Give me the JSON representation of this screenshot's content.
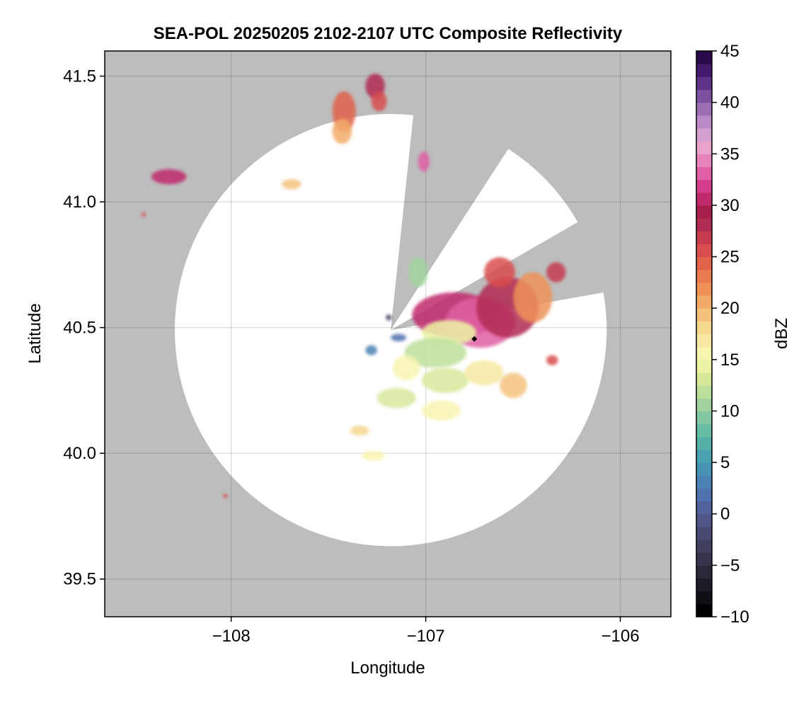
{
  "chart_data": {
    "type": "heatmap",
    "title": "SEA-POL 20250205 2102-2107 UTC Composite Reflectivity",
    "xlabel": "Longitude",
    "ylabel": "Latitude",
    "xlim": [
      -108.65,
      -105.74
    ],
    "ylim": [
      39.35,
      41.6
    ],
    "xticks": [
      {
        "value": -108,
        "label": "−108"
      },
      {
        "value": -107,
        "label": "−107"
      },
      {
        "value": -106,
        "label": "−106"
      }
    ],
    "yticks": [
      {
        "value": 39.5,
        "label": "39.5"
      },
      {
        "value": 40.0,
        "label": "40.0"
      },
      {
        "value": 40.5,
        "label": "40.5"
      },
      {
        "value": 41.0,
        "label": "41.0"
      },
      {
        "value": 41.5,
        "label": "41.5"
      }
    ],
    "grid": true,
    "background_color": "#bdbdbd",
    "coverage_color": "#ffffff",
    "radar": {
      "center_lon": -107.18,
      "center_lat": 40.49,
      "range_deg": 1.11,
      "blocked_sectors_deg": [
        [
          10,
          30
        ],
        [
          57,
          84
        ]
      ],
      "site_marker": {
        "lon": -106.75,
        "lat": 40.455
      }
    },
    "colorbar": {
      "label": "dBZ",
      "min": -10,
      "max": 45,
      "ticks": [
        {
          "value": 45,
          "label": "45"
        },
        {
          "value": 40,
          "label": "40"
        },
        {
          "value": 35,
          "label": "35"
        },
        {
          "value": 30,
          "label": "30"
        },
        {
          "value": 25,
          "label": "25"
        },
        {
          "value": 20,
          "label": "20"
        },
        {
          "value": 15,
          "label": "15"
        },
        {
          "value": 10,
          "label": "10"
        },
        {
          "value": 5,
          "label": "5"
        },
        {
          "value": 0,
          "label": "0"
        },
        {
          "value": -5,
          "label": "−5"
        },
        {
          "value": -10,
          "label": "−10"
        }
      ],
      "colors": [
        "#000000",
        "#0f0e14",
        "#1d1b26",
        "#2a2838",
        "#36344c",
        "#403f5f",
        "#494a73",
        "#4f5687",
        "#52629a",
        "#4f71ad",
        "#4a82b4",
        "#4592b5",
        "#4aa2b0",
        "#55b1a8",
        "#67bda4",
        "#83c8a3",
        "#a2d39f",
        "#bddf9c",
        "#d6e99b",
        "#ecf4a3",
        "#f8f5b0",
        "#f7e9a2",
        "#f6d88f",
        "#f4c27c",
        "#f2aa68",
        "#ef9258",
        "#ea7a4f",
        "#e2624b",
        "#d84d4d",
        "#c63c4f",
        "#b02c52",
        "#a71f4c",
        "#c02a6c",
        "#d33d8a",
        "#e05fa5",
        "#e884bc",
        "#e9a4cc",
        "#d3a0d0",
        "#b98ac5",
        "#9c6fb3",
        "#7d519f",
        "#5e3388",
        "#42196c",
        "#2a0a4d"
      ]
    },
    "echoes": [
      {
        "lon": -106.85,
        "lat": 40.55,
        "rlon": 0.22,
        "rlat": 0.09,
        "dbz": 30
      },
      {
        "lon": -106.72,
        "lat": 40.52,
        "rlon": 0.18,
        "rlat": 0.1,
        "dbz": 33
      },
      {
        "lon": -106.58,
        "lat": 40.58,
        "rlon": 0.16,
        "rlat": 0.12,
        "dbz": 28
      },
      {
        "lon": -106.45,
        "lat": 40.62,
        "rlon": 0.1,
        "rlat": 0.1,
        "dbz": 22
      },
      {
        "lon": -106.62,
        "lat": 40.72,
        "rlon": 0.08,
        "rlat": 0.06,
        "dbz": 25
      },
      {
        "lon": -106.33,
        "lat": 40.72,
        "rlon": 0.05,
        "rlat": 0.04,
        "dbz": 27
      },
      {
        "lon": -106.88,
        "lat": 40.48,
        "rlon": 0.14,
        "rlat": 0.05,
        "dbz": 14
      },
      {
        "lon": -106.95,
        "lat": 40.4,
        "rlon": 0.16,
        "rlat": 0.06,
        "dbz": 12
      },
      {
        "lon": -106.9,
        "lat": 40.29,
        "rlon": 0.12,
        "rlat": 0.05,
        "dbz": 13
      },
      {
        "lon": -107.1,
        "lat": 40.34,
        "rlon": 0.07,
        "rlat": 0.05,
        "dbz": 15
      },
      {
        "lon": -107.15,
        "lat": 40.22,
        "rlon": 0.1,
        "rlat": 0.04,
        "dbz": 13
      },
      {
        "lon": -106.92,
        "lat": 40.17,
        "rlon": 0.1,
        "rlat": 0.04,
        "dbz": 16
      },
      {
        "lon": -106.7,
        "lat": 40.32,
        "rlon": 0.1,
        "rlat": 0.05,
        "dbz": 17
      },
      {
        "lon": -106.55,
        "lat": 40.27,
        "rlon": 0.07,
        "rlat": 0.05,
        "dbz": 19
      },
      {
        "lon": -107.27,
        "lat": 39.99,
        "rlon": 0.06,
        "rlat": 0.02,
        "dbz": 16
      },
      {
        "lon": -107.34,
        "lat": 40.09,
        "rlon": 0.05,
        "rlat": 0.02,
        "dbz": 18
      },
      {
        "lon": -107.04,
        "lat": 40.72,
        "rlon": 0.05,
        "rlat": 0.06,
        "dbz": 11
      },
      {
        "lon": -106.35,
        "lat": 40.37,
        "rlon": 0.03,
        "rlat": 0.02,
        "dbz": 25
      },
      {
        "lon": -107.42,
        "lat": 41.36,
        "rlon": 0.06,
        "rlat": 0.08,
        "dbz": 24
      },
      {
        "lon": -107.43,
        "lat": 41.28,
        "rlon": 0.05,
        "rlat": 0.05,
        "dbz": 20
      },
      {
        "lon": -107.26,
        "lat": 41.46,
        "rlon": 0.05,
        "rlat": 0.05,
        "dbz": 28
      },
      {
        "lon": -107.24,
        "lat": 41.4,
        "rlon": 0.04,
        "rlat": 0.04,
        "dbz": 25
      },
      {
        "lon": -107.01,
        "lat": 41.16,
        "rlon": 0.03,
        "rlat": 0.04,
        "dbz": 33
      },
      {
        "lon": -108.32,
        "lat": 41.1,
        "rlon": 0.09,
        "rlat": 0.03,
        "dbz": 31
      },
      {
        "lon": -107.69,
        "lat": 41.07,
        "rlon": 0.05,
        "rlat": 0.02,
        "dbz": 19
      },
      {
        "lon": -108.45,
        "lat": 40.95,
        "rlon": 0.012,
        "rlat": 0.008,
        "dbz": 26
      },
      {
        "lon": -108.03,
        "lat": 39.83,
        "rlon": 0.012,
        "rlat": 0.008,
        "dbz": 26
      },
      {
        "lon": -107.28,
        "lat": 40.41,
        "rlon": 0.03,
        "rlat": 0.02,
        "dbz": 3
      },
      {
        "lon": -107.19,
        "lat": 40.54,
        "rlon": 0.015,
        "rlat": 0.012,
        "dbz": -3
      },
      {
        "lon": -107.14,
        "lat": 40.46,
        "rlon": 0.04,
        "rlat": 0.015,
        "dbz": 2
      }
    ]
  }
}
